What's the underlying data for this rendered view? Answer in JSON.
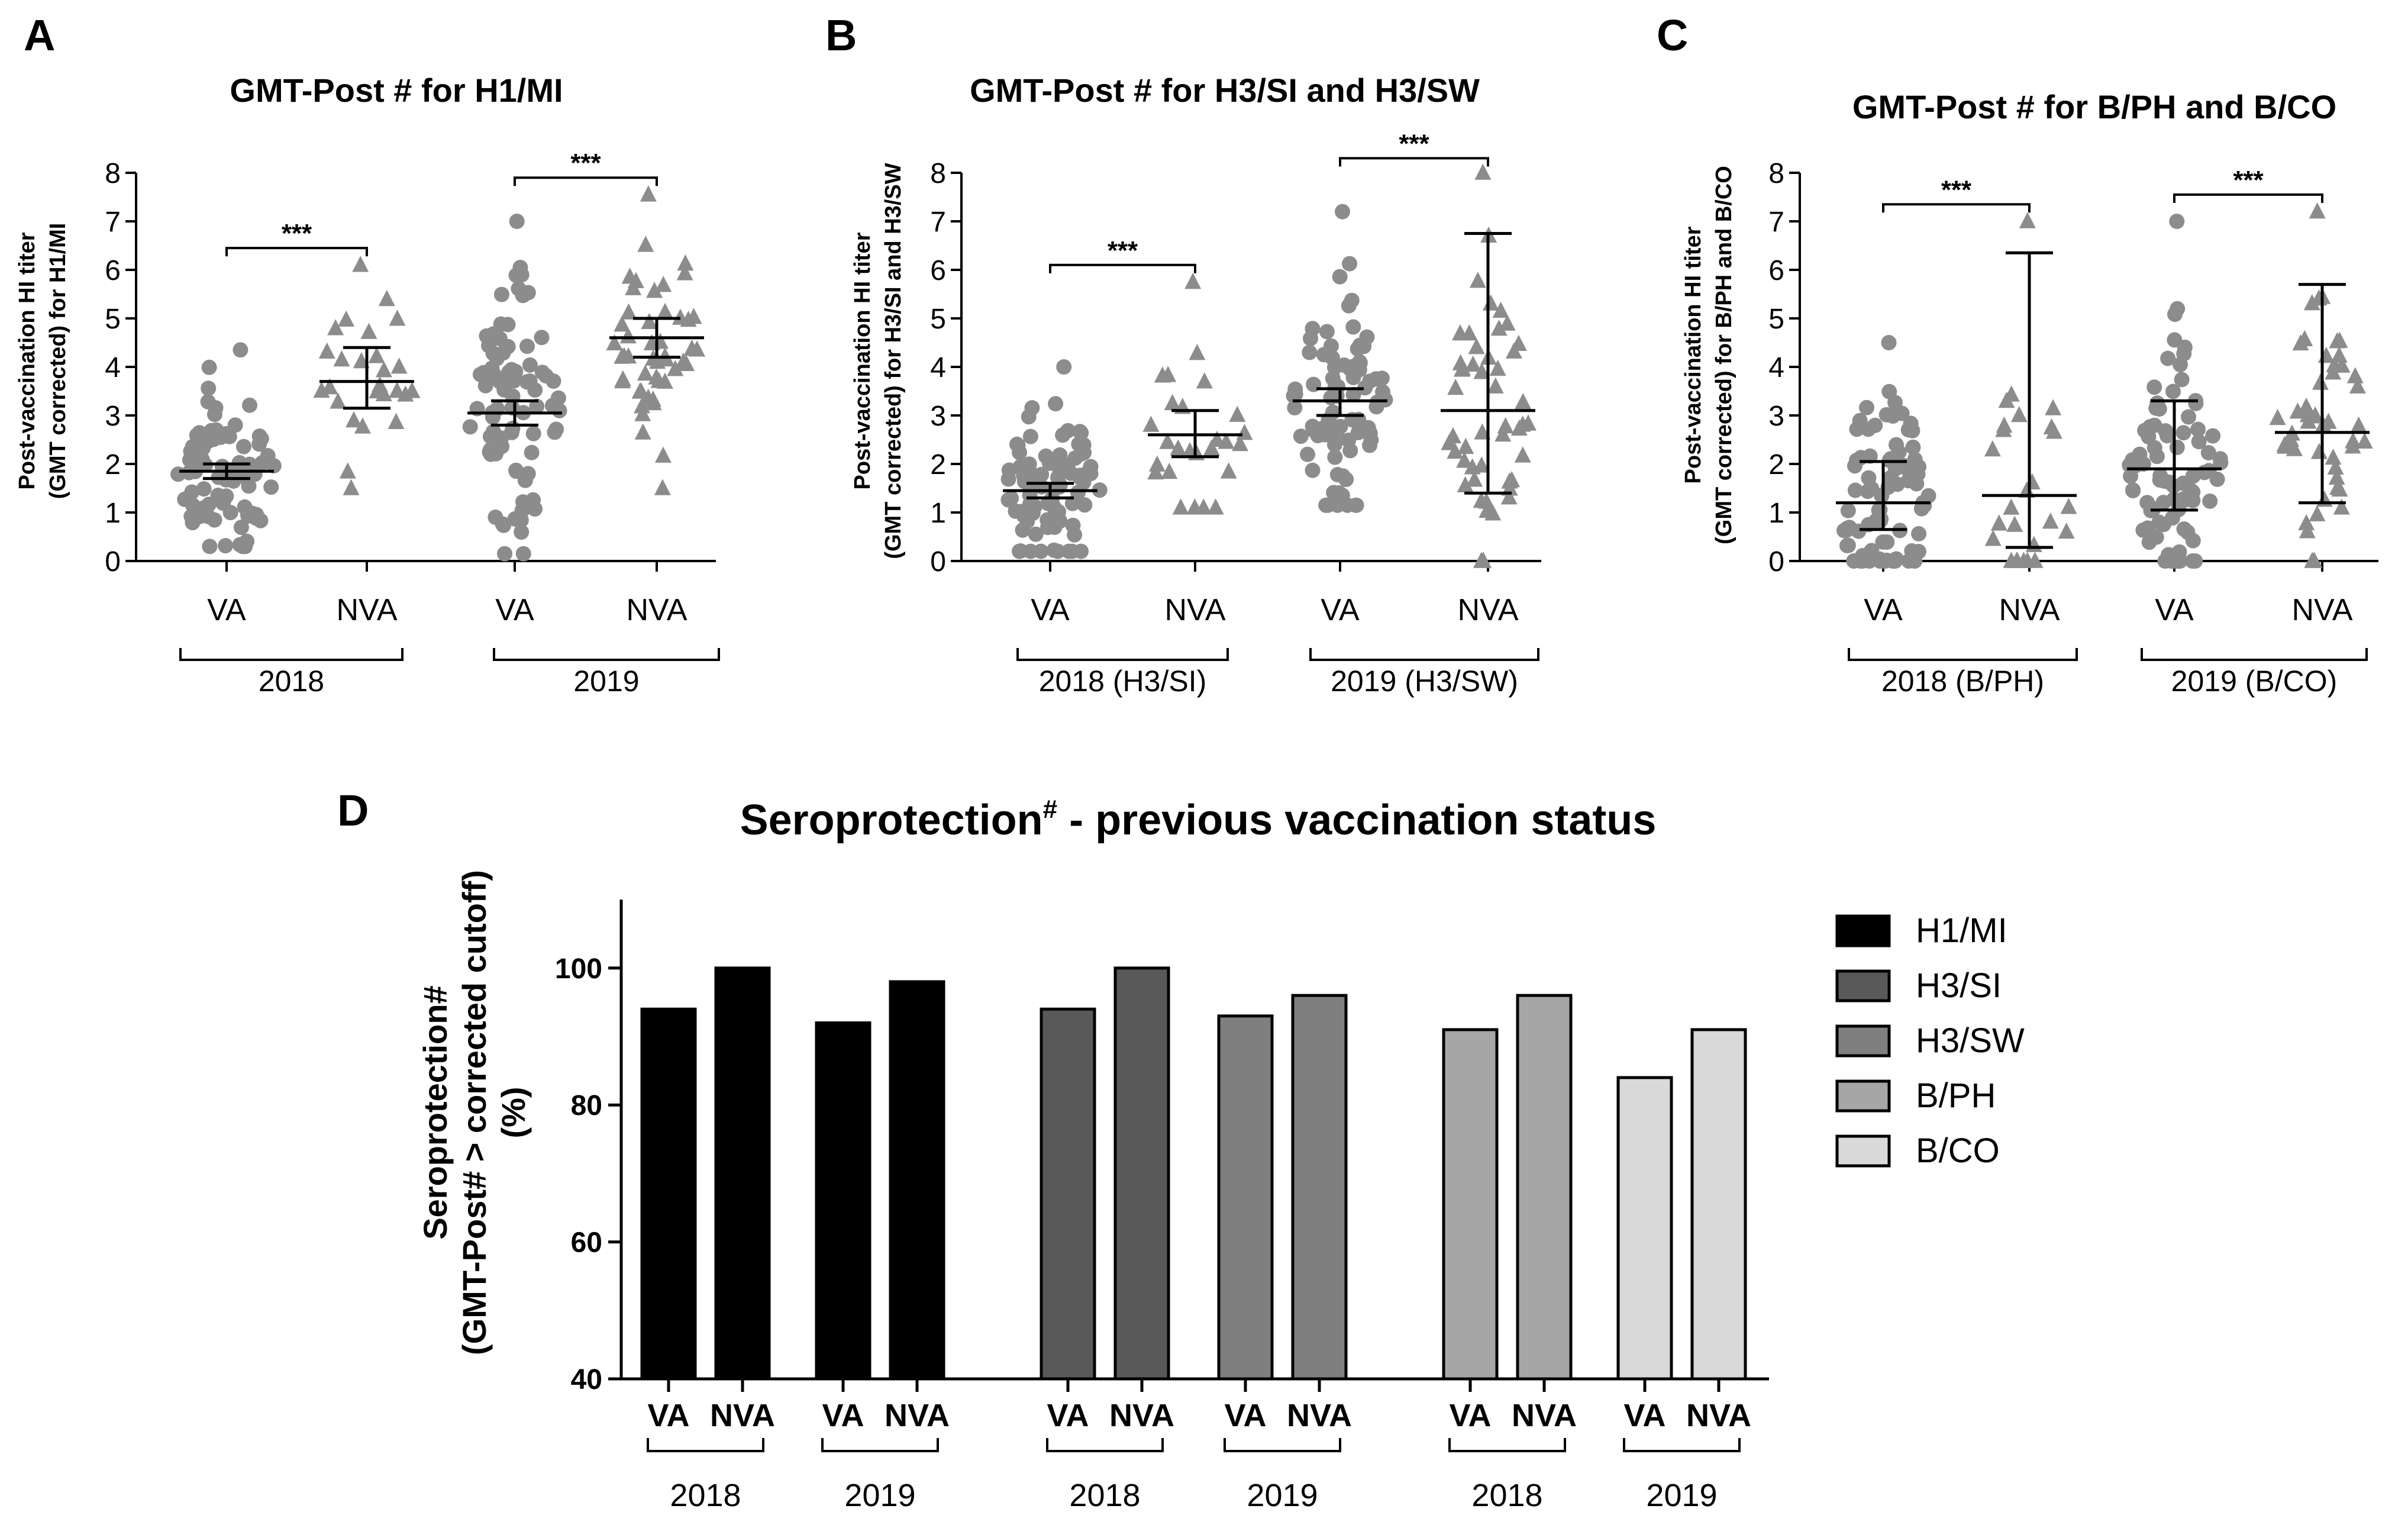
{
  "chart_data": [
    {
      "type": "scatter",
      "panel": "A",
      "title": "GMT-Post # for H1/MI",
      "ylabel_lines": [
        "Post-vaccination HI titer",
        "(GMT corrected) for H1/MI"
      ],
      "ylim": [
        0,
        8
      ],
      "yticks": [
        "0",
        "1",
        "2",
        "3",
        "4",
        "5",
        "6",
        "7",
        "8"
      ],
      "categories": [
        "VA",
        "NVA",
        "VA",
        "NVA"
      ],
      "groups": [
        "2018",
        "2019"
      ],
      "significance": [
        "***",
        "***"
      ],
      "series": [
        {
          "name": "VA",
          "marker": "circle",
          "center": 1.85,
          "err_low": 1.7,
          "err_high": 2.0,
          "count": 80,
          "min": 0.3,
          "max": 4.35
        },
        {
          "name": "NVA",
          "marker": "triangle",
          "center": 3.7,
          "err_low": 3.15,
          "err_high": 4.4,
          "count": 26,
          "min": 1.5,
          "max": 6.1
        },
        {
          "name": "VA",
          "marker": "circle",
          "center": 3.05,
          "err_low": 2.8,
          "err_high": 3.3,
          "count": 85,
          "min": 0.15,
          "max": 7.0
        },
        {
          "name": "NVA",
          "marker": "triangle",
          "center": 4.6,
          "err_low": 4.2,
          "err_high": 5.0,
          "count": 48,
          "min": 1.5,
          "max": 7.55
        }
      ]
    },
    {
      "type": "scatter",
      "panel": "B",
      "title": "GMT-Post # for H3/SI and H3/SW",
      "ylabel_lines": [
        "Post-vaccination HI titer",
        "(GMT corrected) for H3/SI and H3/SW"
      ],
      "ylim": [
        0,
        8
      ],
      "yticks": [
        "0",
        "1",
        "2",
        "3",
        "4",
        "5",
        "6",
        "7",
        "8"
      ],
      "categories": [
        "VA",
        "NVA",
        "VA",
        "NVA"
      ],
      "groups": [
        "2018 (H3/SI)",
        "2019 (H3/SW)"
      ],
      "significance": [
        "***",
        "***"
      ],
      "series": [
        {
          "name": "VA",
          "marker": "circle",
          "center": 1.45,
          "err_low": 1.3,
          "err_high": 1.6,
          "count": 80,
          "min": 0.2,
          "max": 4.0
        },
        {
          "name": "NVA",
          "marker": "triangle",
          "center": 2.6,
          "err_low": 2.15,
          "err_high": 3.1,
          "count": 26,
          "min": 1.1,
          "max": 5.75
        },
        {
          "name": "VA",
          "marker": "circle",
          "center": 3.3,
          "err_low": 3.0,
          "err_high": 3.55,
          "count": 85,
          "min": 1.15,
          "max": 7.2
        },
        {
          "name": "NVA",
          "marker": "triangle",
          "center": 3.1,
          "err_low": 1.4,
          "err_high": 6.75,
          "count": 48,
          "min": 0.0,
          "max": 8.0
        }
      ]
    },
    {
      "type": "scatter",
      "panel": "C",
      "title": "GMT-Post # for B/PH and B/CO",
      "ylabel_lines": [
        "Post-vaccination HI titer",
        "(GMT corrected) for B/PH and B/CO"
      ],
      "ylim": [
        0,
        8
      ],
      "yticks": [
        "0",
        "1",
        "2",
        "3",
        "4",
        "5",
        "6",
        "7",
        "8"
      ],
      "categories": [
        "VA",
        "NVA",
        "VA",
        "NVA"
      ],
      "groups": [
        "2018 (B/PH)",
        "2019 (B/CO)"
      ],
      "significance": [
        "***",
        "***"
      ],
      "series": [
        {
          "name": "VA",
          "marker": "circle",
          "center": 1.2,
          "err_low": 0.65,
          "err_high": 2.05,
          "count": 80,
          "min": 0.0,
          "max": 4.5
        },
        {
          "name": "NVA",
          "marker": "triangle",
          "center": 1.35,
          "err_low": 0.28,
          "err_high": 6.35,
          "count": 26,
          "min": 0.0,
          "max": 7.0
        },
        {
          "name": "VA",
          "marker": "circle",
          "center": 1.9,
          "err_low": 1.05,
          "err_high": 3.3,
          "count": 85,
          "min": 0.0,
          "max": 7.0
        },
        {
          "name": "NVA",
          "marker": "triangle",
          "center": 2.65,
          "err_low": 1.2,
          "err_high": 5.7,
          "count": 48,
          "min": 0.0,
          "max": 7.2
        }
      ]
    },
    {
      "type": "bar",
      "panel": "D",
      "title": "Seroprotection",
      "title_sup": "#",
      "title_rest": " - previous vaccination status",
      "ylabel_lines": [
        "Seroprotection#",
        "(GMT-Post# > corrected cutoff)",
        "(%)"
      ],
      "ylim": [
        40,
        110
      ],
      "yticks": [
        "40",
        "60",
        "80",
        "100"
      ],
      "legend_position": "right",
      "legend": [
        {
          "name": "H1/MI",
          "color": "#000000"
        },
        {
          "name": "H3/SI",
          "color": "#595959"
        },
        {
          "name": "H3/SW",
          "color": "#7f7f7f"
        },
        {
          "name": "B/PH",
          "color": "#a6a6a6"
        },
        {
          "name": "B/CO",
          "color": "#d9d9d9"
        }
      ],
      "groups": [
        {
          "label": "2018",
          "series": "H1/MI",
          "VA": 94,
          "NVA": 100
        },
        {
          "label": "2019",
          "series": "H1/MI",
          "VA": 92,
          "NVA": 98
        },
        {
          "label": "2018",
          "series": "H3/SI",
          "VA": 94,
          "NVA": 100
        },
        {
          "label": "2019",
          "series": "H3/SW",
          "VA": 93,
          "NVA": 96
        },
        {
          "label": "2018",
          "series": "B/PH",
          "VA": 91,
          "NVA": 96
        },
        {
          "label": "2019",
          "series": "B/CO",
          "VA": 84,
          "NVA": 91
        }
      ],
      "categories": [
        "VA",
        "NVA"
      ]
    }
  ]
}
